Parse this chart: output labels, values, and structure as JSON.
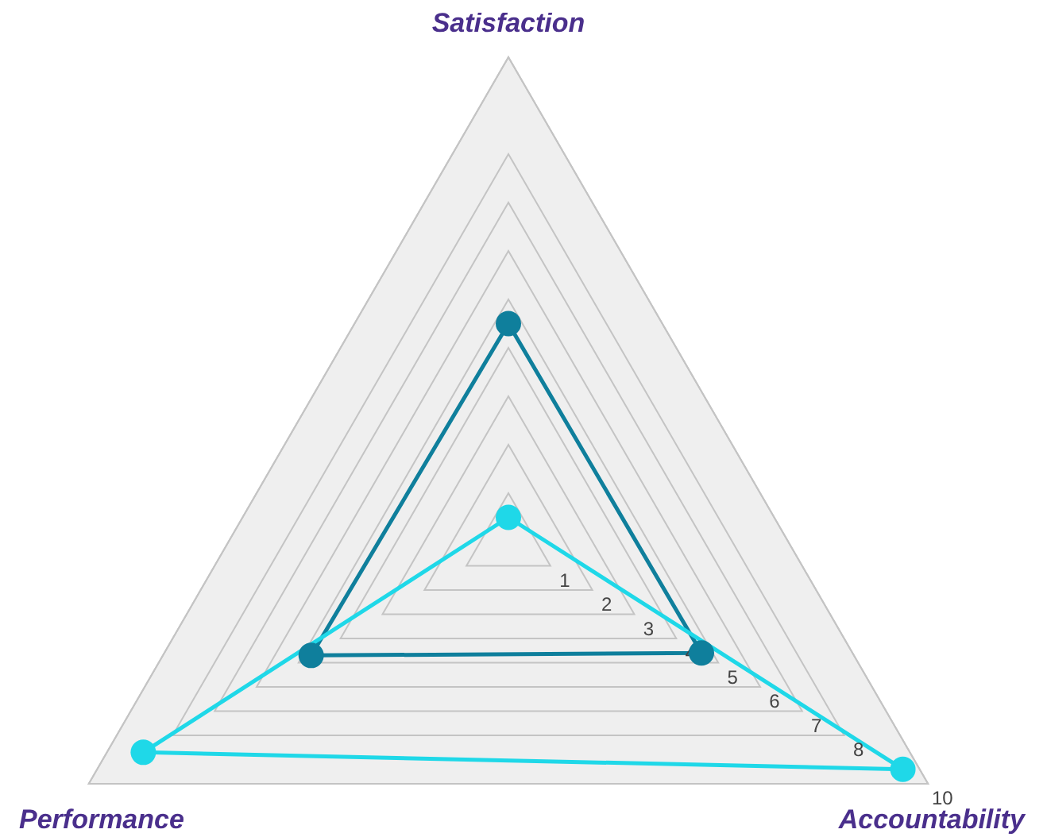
{
  "chart_data": {
    "type": "radar",
    "categories": [
      "Satisfaction",
      "Accountability",
      "Performance"
    ],
    "series": [
      {
        "color": "#0f7f9c",
        "values": [
          4.5,
          4.6,
          4.7
        ]
      },
      {
        "color": "#1fd8e8",
        "values": [
          0.5,
          9.4,
          8.7
        ]
      }
    ],
    "ylim": [
      0,
      10
    ],
    "yticks": [
      1,
      2,
      3,
      4,
      5,
      6,
      7,
      8,
      10
    ],
    "grid": true,
    "marker": "circle"
  }
}
